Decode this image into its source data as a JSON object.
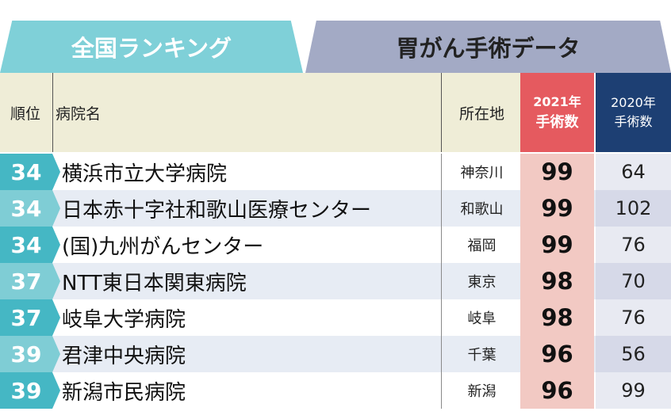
{
  "tabs": {
    "left": "全国ランキング",
    "right": "胃がん手術データ"
  },
  "headers": {
    "rank": "順位",
    "hospital": "病院名",
    "location": "所在地",
    "y2021_year": "2021年",
    "y2021_label": "手術数",
    "y2020_year": "2020年",
    "y2020_label": "手術数"
  },
  "rows": [
    {
      "rank": "34",
      "name": "横浜市立大学病院",
      "location": "神奈川",
      "y2021": "99",
      "y2020": "64"
    },
    {
      "rank": "34",
      "name": "日本赤十字社和歌山医療センター",
      "location": "和歌山",
      "y2021": "99",
      "y2020": "102"
    },
    {
      "rank": "34",
      "name": "(国)九州がんセンター",
      "location": "福岡",
      "y2021": "99",
      "y2020": "76"
    },
    {
      "rank": "37",
      "name": "NTT東日本関東病院",
      "location": "東京",
      "y2021": "98",
      "y2020": "70"
    },
    {
      "rank": "37",
      "name": "岐阜大学病院",
      "location": "岐阜",
      "y2021": "98",
      "y2020": "76"
    },
    {
      "rank": "39",
      "name": "君津中央病院",
      "location": "千葉",
      "y2021": "96",
      "y2020": "56"
    },
    {
      "rank": "39",
      "name": "新潟市民病院",
      "location": "新潟",
      "y2021": "96",
      "y2020": "99"
    }
  ],
  "colors": {
    "tab_left": "#7fd0d8",
    "tab_right": "#a3aac5",
    "header_2021": "#e55a5f",
    "header_2020": "#1d3f73",
    "rank_dark": "#45b7c4",
    "rank_light": "#7fcdd5"
  }
}
